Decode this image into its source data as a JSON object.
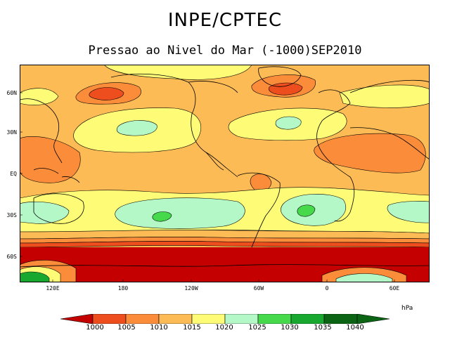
{
  "header": {
    "title": "INPE/CPTEC",
    "subtitle": "Pressao ao Nivel do Mar (-1000)SEP2010"
  },
  "map": {
    "projection": "cylindrical",
    "lat_labels": [
      "60N",
      "30N",
      "EQ",
      "30S",
      "60S"
    ],
    "lon_labels": [
      "120E",
      "180",
      "120W",
      "60W",
      "0",
      "60E"
    ],
    "fill_colors": {
      "below_1000": "#c40000",
      "1000_1005": "#ee4e1e",
      "1005_1010": "#fa8c3a",
      "1010_1015": "#fdbb55",
      "1015_1020": "#fefb77",
      "1020_1025": "#b4f8c8",
      "1025_1030": "#46d94b",
      "1030_1035": "#18a830",
      "above_1035": "#0a6414"
    }
  },
  "legend": {
    "unit": "hPa",
    "levels": [
      "1000",
      "1005",
      "1010",
      "1015",
      "1020",
      "1025",
      "1030",
      "1035",
      "1040"
    ],
    "colors": [
      "#c40000",
      "#ee4e1e",
      "#fa8c3a",
      "#fdbb55",
      "#fefb77",
      "#b4f8c8",
      "#46d94b",
      "#18a830",
      "#0a6414",
      "#0a6414"
    ]
  }
}
